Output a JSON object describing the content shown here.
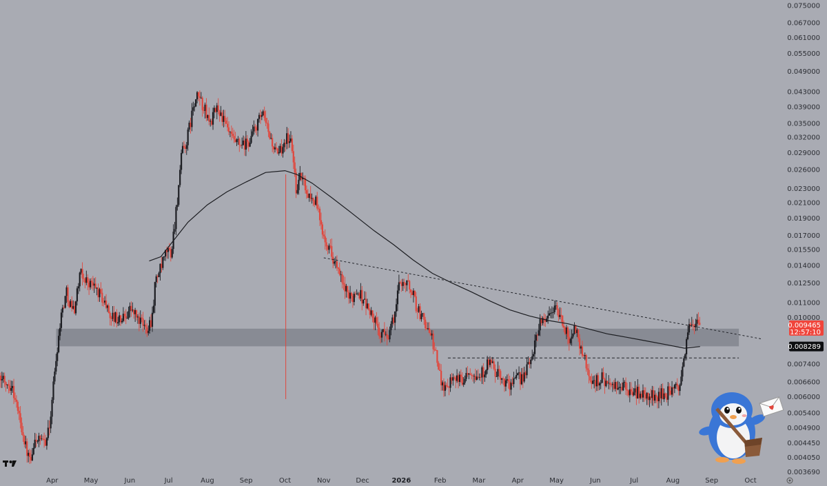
{
  "colors": {
    "background": "#a9abb3",
    "candle_up": "#1c1d22",
    "candle_down": "#e0473d",
    "zone": "#7e8089",
    "ma_line": "#1b1c20",
    "current_tag": "#f0453b",
    "ma_tag": "#0d0e10"
  },
  "icons": {
    "logo": "tradingview-logo-icon",
    "mascot": "penguin-mascot-icon",
    "settings": "settings-icon"
  },
  "chart_data": {
    "type": "candlestick",
    "price_scale": "log",
    "ylim": [
      0.0036,
      0.077
    ],
    "y_ticks": [
      "0.075000",
      "0.067000",
      "0.061000",
      "0.055000",
      "0.049000",
      "0.043000",
      "0.039000",
      "0.035000",
      "0.032000",
      "0.029000",
      "0.026000",
      "0.023000",
      "0.021000",
      "0.019000",
      "0.017000",
      "0.015500",
      "0.014000",
      "0.012500",
      "0.011000",
      "0.010000",
      "0.007400",
      "0.006600",
      "0.006000",
      "0.005400",
      "0.004900",
      "0.004450",
      "0.004050",
      "0.003690"
    ],
    "x_labels": [
      {
        "label": "Apr",
        "t": 1.5
      },
      {
        "label": "May",
        "t": 2.5
      },
      {
        "label": "Jun",
        "t": 3.5
      },
      {
        "label": "Jul",
        "t": 4.5
      },
      {
        "label": "Aug",
        "t": 5.5
      },
      {
        "label": "Sep",
        "t": 6.5
      },
      {
        "label": "Oct",
        "t": 7.5
      },
      {
        "label": "Nov",
        "t": 8.5
      },
      {
        "label": "Dec",
        "t": 9.5
      },
      {
        "label": "2026",
        "t": 10.5,
        "bold": true
      },
      {
        "label": "Feb",
        "t": 11.5
      },
      {
        "label": "Mar",
        "t": 12.5
      },
      {
        "label": "Apr",
        "t": 13.5
      },
      {
        "label": "May",
        "t": 14.5
      },
      {
        "label": "Jun",
        "t": 15.5
      },
      {
        "label": "Jul",
        "t": 16.5
      },
      {
        "label": "Aug",
        "t": 17.5
      },
      {
        "label": "Sep",
        "t": 18.5
      },
      {
        "label": "Oct",
        "t": 19.5
      }
    ],
    "price_path": [
      [
        0.0,
        0.0062
      ],
      [
        0.25,
        0.0068
      ],
      [
        0.5,
        0.0064
      ],
      [
        0.7,
        0.0052
      ],
      [
        0.9,
        0.0041
      ],
      [
        1.0,
        0.0039
      ],
      [
        1.1,
        0.0046
      ],
      [
        1.3,
        0.0044
      ],
      [
        1.45,
        0.0048
      ],
      [
        1.6,
        0.0071
      ],
      [
        1.75,
        0.01
      ],
      [
        1.9,
        0.0118
      ],
      [
        2.0,
        0.0109
      ],
      [
        2.1,
        0.0105
      ],
      [
        2.25,
        0.0132
      ],
      [
        2.45,
        0.0126
      ],
      [
        2.65,
        0.0121
      ],
      [
        2.85,
        0.0112
      ],
      [
        3.05,
        0.0101
      ],
      [
        3.3,
        0.0098
      ],
      [
        3.55,
        0.0106
      ],
      [
        3.75,
        0.0099
      ],
      [
        3.95,
        0.0093
      ],
      [
        4.1,
        0.0099
      ],
      [
        4.2,
        0.0128
      ],
      [
        4.35,
        0.0138
      ],
      [
        4.5,
        0.0155
      ],
      [
        4.6,
        0.015
      ],
      [
        4.75,
        0.021
      ],
      [
        4.88,
        0.029
      ],
      [
        5.0,
        0.031
      ],
      [
        5.15,
        0.038
      ],
      [
        5.3,
        0.042
      ],
      [
        5.45,
        0.0385
      ],
      [
        5.6,
        0.035
      ],
      [
        5.8,
        0.039
      ],
      [
        6.0,
        0.0345
      ],
      [
        6.2,
        0.031
      ],
      [
        6.45,
        0.03
      ],
      [
        6.6,
        0.031
      ],
      [
        6.8,
        0.0345
      ],
      [
        6.95,
        0.037
      ],
      [
        7.15,
        0.032
      ],
      [
        7.35,
        0.028
      ],
      [
        7.55,
        0.032
      ],
      [
        7.7,
        0.031
      ],
      [
        7.82,
        0.023
      ],
      [
        7.95,
        0.025
      ],
      [
        8.15,
        0.022
      ],
      [
        8.35,
        0.021
      ],
      [
        8.45,
        0.018
      ],
      [
        8.6,
        0.0165
      ],
      [
        8.8,
        0.0145
      ],
      [
        9.0,
        0.0125
      ],
      [
        9.2,
        0.0112
      ],
      [
        9.4,
        0.012
      ],
      [
        9.6,
        0.011
      ],
      [
        9.8,
        0.01
      ],
      [
        10.0,
        0.0089
      ],
      [
        10.2,
        0.009
      ],
      [
        10.35,
        0.01
      ],
      [
        10.5,
        0.0128
      ],
      [
        10.65,
        0.0125
      ],
      [
        10.8,
        0.012
      ],
      [
        10.95,
        0.0105
      ],
      [
        11.15,
        0.0097
      ],
      [
        11.35,
        0.0085
      ],
      [
        11.55,
        0.0067
      ],
      [
        11.7,
        0.0063
      ],
      [
        11.85,
        0.007
      ],
      [
        12.05,
        0.0066
      ],
      [
        12.3,
        0.0072
      ],
      [
        12.55,
        0.0068
      ],
      [
        12.8,
        0.0075
      ],
      [
        13.0,
        0.0069
      ],
      [
        13.3,
        0.0065
      ],
      [
        13.55,
        0.0067
      ],
      [
        13.75,
        0.007
      ],
      [
        13.95,
        0.0082
      ],
      [
        14.1,
        0.0098
      ],
      [
        14.3,
        0.01
      ],
      [
        14.5,
        0.0108
      ],
      [
        14.7,
        0.0095
      ],
      [
        14.85,
        0.0087
      ],
      [
        15.0,
        0.0094
      ],
      [
        15.2,
        0.008
      ],
      [
        15.45,
        0.0065
      ],
      [
        15.7,
        0.0068
      ],
      [
        15.95,
        0.0063
      ],
      [
        16.2,
        0.0064
      ],
      [
        16.45,
        0.0062
      ],
      [
        16.7,
        0.0061
      ],
      [
        17.0,
        0.006
      ],
      [
        17.3,
        0.0061
      ],
      [
        17.55,
        0.0062
      ],
      [
        17.7,
        0.0065
      ],
      [
        17.82,
        0.0075
      ],
      [
        17.92,
        0.0092
      ],
      [
        18.05,
        0.0098
      ],
      [
        18.15,
        0.0095
      ],
      [
        18.2,
        0.009465
      ]
    ],
    "series": [
      {
        "name": "",
        "type": "moving-average",
        "points": [
          [
            4.0,
            0.0144
          ],
          [
            4.3,
            0.0148
          ],
          [
            4.6,
            0.0163
          ],
          [
            5.0,
            0.0185
          ],
          [
            5.5,
            0.0207
          ],
          [
            6.0,
            0.0225
          ],
          [
            6.5,
            0.024
          ],
          [
            7.0,
            0.0255
          ],
          [
            7.5,
            0.0258
          ],
          [
            7.8,
            0.0252
          ],
          [
            8.2,
            0.0238
          ],
          [
            8.7,
            0.0217
          ],
          [
            9.2,
            0.0197
          ],
          [
            9.8,
            0.0175
          ],
          [
            10.3,
            0.016
          ],
          [
            10.8,
            0.0145
          ],
          [
            11.3,
            0.0133
          ],
          [
            11.8,
            0.0125
          ],
          [
            12.3,
            0.0118
          ],
          [
            12.8,
            0.0111
          ],
          [
            13.3,
            0.0105
          ],
          [
            13.8,
            0.0101
          ],
          [
            14.3,
            0.0098
          ],
          [
            14.8,
            0.0096
          ],
          [
            15.3,
            0.0093
          ],
          [
            15.8,
            0.009
          ],
          [
            16.3,
            0.0088
          ],
          [
            16.8,
            0.0086
          ],
          [
            17.3,
            0.0084
          ],
          [
            17.8,
            0.0082
          ],
          [
            18.2,
            0.008289
          ]
        ]
      }
    ],
    "annotations": {
      "support_zone": {
        "t_start": 1.6,
        "t_end": 19.2,
        "y_low": 0.0083,
        "y_high": 0.0093
      },
      "descending_trendline": {
        "from": [
          8.5,
          0.0147
        ],
        "to": [
          19.8,
          0.0087
        ]
      },
      "horizontal_level": {
        "t_start": 11.7,
        "t_end": 19.2,
        "y": 0.0077
      },
      "spike_wick": {
        "t": 7.52,
        "y_low": 0.0059,
        "y_high": 0.0252
      }
    },
    "current_price": {
      "value": "0.009465",
      "countdown": "12:57:10"
    },
    "ma_value": {
      "value": "0.008289"
    }
  }
}
